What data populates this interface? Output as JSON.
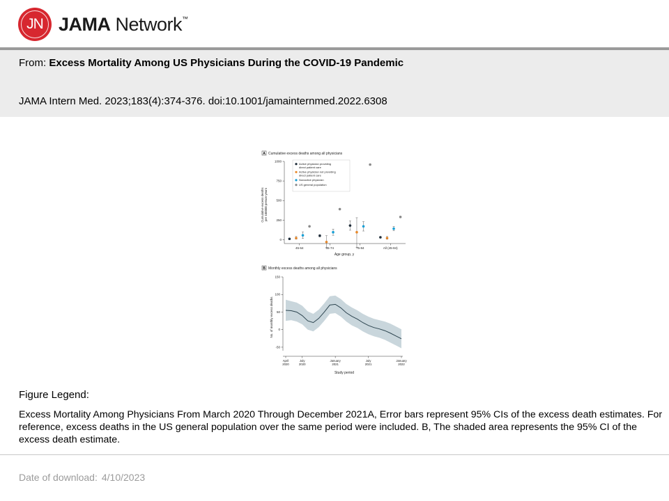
{
  "brand": {
    "logo_initials": "JN",
    "name_bold": "JAMA",
    "name_rest": " Network",
    "trademark": "™"
  },
  "article": {
    "from_label": "From: ",
    "title": "Excess Mortality Among US Physicians During the COVID-19 Pandemic",
    "citation": "JAMA Intern Med. 2023;183(4):374-376. doi:10.1001/jamainternmed.2022.6308"
  },
  "figure_legend": {
    "heading": "Figure Legend:",
    "text": "Excess Mortality Among Physicians From March 2020 Through December 2021A, Error bars represent 95% CIs of the excess death estimates. For reference, excess deaths in the US general population over the same period were included. B, The shaded area represents the 95% CI of the excess death estimate."
  },
  "download": {
    "label": "Date of download:",
    "date": "4/10/2023"
  },
  "chart_data": [
    {
      "type": "scatter",
      "panel": "A",
      "title": "Cumulative excess deaths among all physicians",
      "ylabel": "Cumulative excess deaths\nper 100000 person-years",
      "xlabel": "Age group, y",
      "ylim": [
        -50,
        1000
      ],
      "yticks": [
        0,
        250,
        500,
        750,
        1000
      ],
      "categories": [
        "45-64",
        "65-74",
        "75-84",
        "All (45-84)"
      ],
      "series": [
        {
          "name": "Active physician providing direct patient care",
          "color": "#1f2d3a",
          "values": [
            10,
            50,
            180,
            30
          ],
          "ci_low": [
            5,
            35,
            120,
            22
          ],
          "ci_high": [
            15,
            65,
            240,
            38
          ]
        },
        {
          "name": "Active physician not providing direct patient care",
          "color": "#e8892b",
          "values": [
            20,
            -30,
            95,
            20
          ],
          "ci_low": [
            5,
            -100,
            -100,
            5
          ],
          "ci_high": [
            40,
            50,
            280,
            40
          ]
        },
        {
          "name": "Nonactive physician",
          "color": "#19a0d6",
          "values": [
            55,
            95,
            170,
            140
          ],
          "ci_low": [
            15,
            55,
            110,
            115
          ],
          "ci_high": [
            100,
            135,
            230,
            170
          ]
        },
        {
          "name": "US general population",
          "color": "#8a8a8a",
          "values": [
            170,
            390,
            960,
            290
          ],
          "ci_low": [
            null,
            null,
            null,
            null
          ],
          "ci_high": [
            null,
            null,
            null,
            null
          ]
        }
      ]
    },
    {
      "type": "area",
      "panel": "B",
      "title": "Monthly excess deaths among all physicians",
      "ylabel": "No. of monthly excess deaths",
      "xlabel": "Study period",
      "ylim": [
        -60,
        150
      ],
      "yticks": [
        -50,
        0,
        50,
        100,
        150
      ],
      "x_tick_labels": [
        {
          "month": "April",
          "year": "2020",
          "index": 0
        },
        {
          "month": "July",
          "year": "2020",
          "index": 3
        },
        {
          "month": "January",
          "year": "2021",
          "index": 9
        },
        {
          "month": "July",
          "year": "2021",
          "index": 15
        },
        {
          "month": "January",
          "year": "2022",
          "index": 21
        }
      ],
      "x_index": [
        0,
        1,
        2,
        3,
        4,
        5,
        6,
        7,
        8,
        9,
        10,
        11,
        12,
        13,
        14,
        15,
        16,
        17,
        18,
        19,
        20,
        21
      ],
      "values": [
        55,
        54,
        50,
        40,
        25,
        20,
        32,
        50,
        70,
        72,
        62,
        48,
        38,
        30,
        20,
        12,
        6,
        2,
        -3,
        -10,
        -18,
        -26
      ],
      "ci_low": [
        25,
        27,
        23,
        15,
        0,
        -5,
        7,
        25,
        45,
        47,
        37,
        23,
        12,
        5,
        -5,
        -13,
        -19,
        -23,
        -29,
        -37,
        -45,
        -53
      ],
      "ci_high": [
        85,
        81,
        77,
        68,
        52,
        45,
        57,
        75,
        95,
        97,
        87,
        73,
        63,
        55,
        45,
        37,
        31,
        27,
        23,
        17,
        9,
        1
      ]
    }
  ]
}
